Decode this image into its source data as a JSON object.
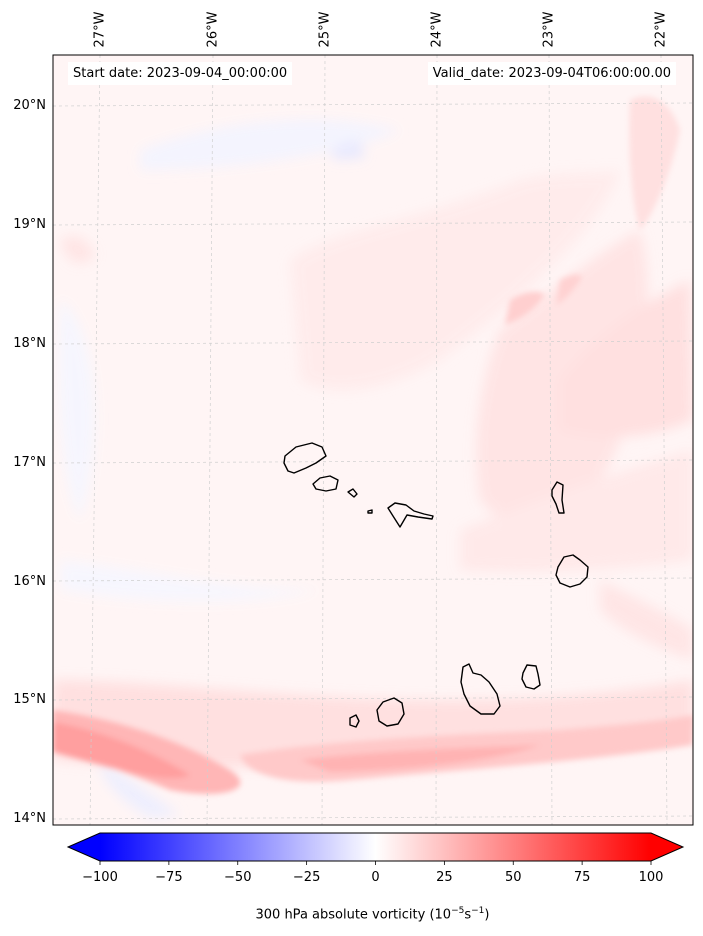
{
  "map": {
    "start_date_text": "Start date: 2023-09-04_00:00:00",
    "valid_date_text": "Valid_date: 2023-09-04T06:00:00.00",
    "longitude_labels": [
      "27°W",
      "26°W",
      "25°W",
      "24°W",
      "23°W",
      "22°W"
    ],
    "latitude_labels": [
      "20°N",
      "19°N",
      "18°N",
      "17°N",
      "16°N",
      "15°N",
      "14°N"
    ],
    "extent": {
      "lon_min": -27.35,
      "lon_max": -21.6,
      "lat_min": 13.95,
      "lat_max": 20.42
    },
    "region": "Cabo Verde islands"
  },
  "colorbar": {
    "label_prefix": "300 hPa absolute vorticity (10",
    "label_exp1": "−5",
    "label_mid": "s",
    "label_exp2": "−1",
    "label_suffix": ")",
    "ticks": [
      "−100",
      "−75",
      "−50",
      "−25",
      "0",
      "25",
      "50",
      "75",
      "100"
    ],
    "min": -100,
    "max": 100,
    "extend": "both",
    "colors": {
      "negative_end": "#0000ff",
      "zero": "#ffffff",
      "positive_end": "#ff0000"
    }
  }
}
